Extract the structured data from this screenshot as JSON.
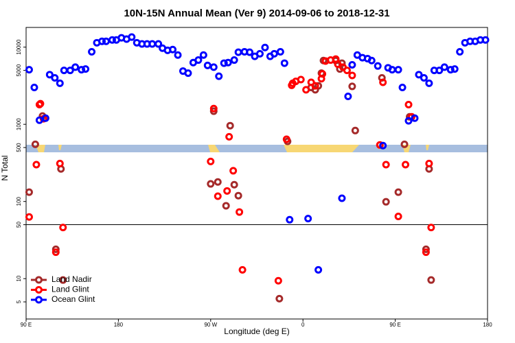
{
  "chart_data": {
    "type": "scatter",
    "title": "10N-15N Annual Mean (Ver 9)   2014-09-06 to 2018-12-31",
    "x_label": "Longitude (deg E)",
    "y_label": "N Total",
    "log_y": true,
    "xlim": [
      90,
      540
    ],
    "ylim": [
      3,
      18000
    ],
    "xticks": [
      {
        "value": 90,
        "label": "90 E"
      },
      {
        "value": 180,
        "label": "180"
      },
      {
        "value": 270,
        "label": "90 W"
      },
      {
        "value": 360,
        "label": "0"
      },
      {
        "value": 450,
        "label": "90 E"
      },
      {
        "value": 540,
        "label": "180"
      }
    ],
    "yticks": [
      5,
      10,
      50,
      100,
      500,
      1000,
      5000,
      10000
    ],
    "hline": 50,
    "legend": "bottom-left",
    "series": [
      {
        "name": "Land Nadir",
        "color": "#a52a2a",
        "x": [
          93,
          99,
          106,
          119,
          124,
          126,
          270,
          273,
          277,
          285,
          289,
          293,
          297,
          337,
          345,
          368,
          372,
          375,
          378,
          380,
          392,
          396,
          398,
          408,
          411,
          437,
          441,
          453,
          459,
          464,
          480,
          483,
          485
        ],
        "values": [
          132,
          550,
          1280,
          24,
          264,
          9.6,
          169,
          1480,
          179,
          88,
          960,
          165,
          119,
          5.5,
          600,
          3000,
          2800,
          3150,
          4600,
          6700,
          6700,
          5200,
          6200,
          3100,
          830,
          4000,
          99,
          132,
          550,
          1250,
          24,
          264,
          9.6
        ]
      },
      {
        "name": "Land Glint",
        "color": "#ff0000",
        "x": [
          93,
          100,
          103,
          104,
          107,
          123,
          126,
          119,
          270,
          273,
          277,
          286,
          288,
          292,
          298,
          301,
          336,
          344,
          349,
          350,
          353,
          358,
          363,
          368,
          372,
          378,
          379,
          382,
          387,
          392,
          394,
          399,
          403,
          408,
          435,
          438,
          441,
          453,
          460,
          463,
          466,
          480,
          483,
          485
        ],
        "values": [
          63,
          300,
          1800,
          1850,
          1180,
          310,
          46,
          22,
          330,
          1600,
          117,
          137,
          690,
          250,
          73,
          13,
          9.4,
          640,
          3200,
          3400,
          3600,
          3800,
          2800,
          3500,
          3150,
          3900,
          4500,
          6600,
          6800,
          7000,
          6000,
          5500,
          5000,
          4300,
          540,
          3500,
          300,
          64,
          300,
          1800,
          1250,
          22,
          310,
          46
        ]
      },
      {
        "name": "Ocean Glint",
        "color": "#0000ff",
        "x": [
          93,
          98,
          103,
          109,
          113,
          118,
          123,
          127,
          133,
          138,
          144,
          148,
          154,
          159,
          164,
          168,
          174,
          178,
          183,
          188,
          193,
          198,
          203,
          208,
          213,
          219,
          223,
          228,
          233,
          238,
          243,
          248,
          253,
          258,
          263,
          267,
          273,
          278,
          283,
          287,
          293,
          297,
          303,
          308,
          313,
          318,
          323,
          328,
          332,
          338,
          342,
          347,
          365,
          375,
          398,
          404,
          408,
          413,
          418,
          423,
          427,
          433,
          438,
          443,
          447,
          453,
          457,
          463,
          469,
          473,
          478,
          483,
          488,
          493,
          498,
          504,
          508,
          513,
          518,
          523,
          528,
          533,
          538
        ],
        "values": [
          5100,
          3000,
          1130,
          1200,
          4400,
          4000,
          3400,
          5000,
          5000,
          5500,
          5100,
          5200,
          8700,
          11400,
          11900,
          11900,
          12400,
          12400,
          13200,
          12700,
          13500,
          11400,
          11000,
          11000,
          11000,
          11000,
          9700,
          9100,
          9300,
          7900,
          4900,
          4600,
          6300,
          6800,
          7900,
          5800,
          5500,
          4200,
          6200,
          6300,
          6800,
          8600,
          8700,
          8600,
          7600,
          8200,
          9900,
          7600,
          8200,
          8700,
          6200,
          58,
          60,
          13,
          110,
          2300,
          5900,
          7900,
          7300,
          7100,
          6700,
          5700,
          530,
          5400,
          5100,
          5100,
          3000,
          1110,
          1200,
          4400,
          4000,
          3400,
          5000,
          5000,
          5500,
          5100,
          5200,
          8700,
          11400,
          11900,
          11900,
          12400,
          12400
        ]
      }
    ]
  }
}
